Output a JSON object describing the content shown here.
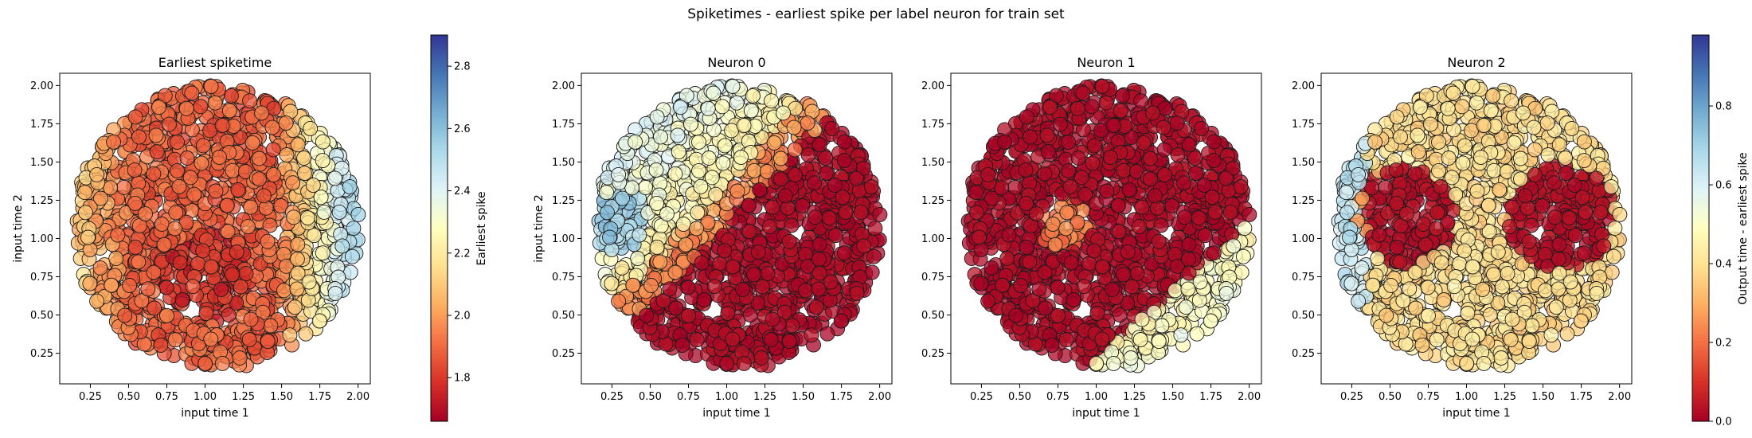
{
  "figure": {
    "suptitle": "Spiketimes - earliest spike per label neuron for train set"
  },
  "colors": {
    "cmap": [
      "#a50026",
      "#d73027",
      "#f46d43",
      "#fdae61",
      "#fee090",
      "#ffffbf",
      "#e0f3f8",
      "#abd9e9",
      "#74add1",
      "#4575b4",
      "#313695"
    ],
    "marker_edge": "#1a1a1a"
  },
  "chart_data": [
    {
      "type": "scatter",
      "title": "Earliest spiketime",
      "xlabel": "input time 1",
      "ylabel": "input time 2",
      "xlim": [
        0.05,
        2.08
      ],
      "ylim": [
        0.05,
        2.08
      ],
      "xticks": [
        "0.25",
        "0.50",
        "0.75",
        "1.00",
        "1.25",
        "1.50",
        "1.75",
        "2.00"
      ],
      "yticks": [
        "0.25",
        "0.50",
        "0.75",
        "1.00",
        "1.25",
        "1.50",
        "1.75",
        "2.00"
      ],
      "colormap": "RdYlBu",
      "point_region": {
        "shape": "disk",
        "center": [
          1.075,
          1.075
        ],
        "radius": 0.93
      },
      "colorbar": {
        "label": "Earliest spike",
        "range": [
          1.66,
          2.9
        ],
        "ticks": [
          "1.8",
          "2.0",
          "2.2",
          "2.4",
          "2.6",
          "2.8"
        ]
      }
    },
    {
      "type": "scatter",
      "title": "Neuron 0",
      "xlabel": "input time 1",
      "ylabel": "input time 2",
      "xlim": [
        0.05,
        2.08
      ],
      "ylim": [
        0.05,
        2.08
      ],
      "xticks": [
        "0.25",
        "0.50",
        "0.75",
        "1.00",
        "1.25",
        "1.50",
        "1.75",
        "2.00"
      ],
      "yticks": [
        "0.25",
        "0.50",
        "0.75",
        "1.00",
        "1.25",
        "1.50",
        "1.75",
        "2.00"
      ],
      "colormap": "RdYlBu",
      "point_region": {
        "shape": "disk",
        "center": [
          1.075,
          1.075
        ],
        "radius": 0.93
      }
    },
    {
      "type": "scatter",
      "title": "Neuron 1",
      "xlabel": "input time 1",
      "ylabel": "",
      "xlim": [
        0.05,
        2.08
      ],
      "ylim": [
        0.05,
        2.08
      ],
      "xticks": [
        "0.25",
        "0.50",
        "0.75",
        "1.00",
        "1.25",
        "1.50",
        "1.75",
        "2.00"
      ],
      "yticks": [
        "0.25",
        "0.50",
        "0.75",
        "1.00",
        "1.25",
        "1.50",
        "1.75",
        "2.00"
      ],
      "colormap": "RdYlBu",
      "point_region": {
        "shape": "disk",
        "center": [
          1.075,
          1.075
        ],
        "radius": 0.93
      }
    },
    {
      "type": "scatter",
      "title": "Neuron 2",
      "xlabel": "input time 1",
      "ylabel": "",
      "xlim": [
        0.05,
        2.08
      ],
      "ylim": [
        0.05,
        2.08
      ],
      "xticks": [
        "0.25",
        "0.50",
        "0.75",
        "1.00",
        "1.25",
        "1.50",
        "1.75",
        "2.00"
      ],
      "yticks": [
        "0.25",
        "0.50",
        "0.75",
        "1.00",
        "1.25",
        "1.50",
        "1.75",
        "2.00"
      ],
      "colormap": "RdYlBu",
      "point_region": {
        "shape": "disk",
        "center": [
          1.075,
          1.075
        ],
        "radius": 0.93
      },
      "colorbar": {
        "label": "Output time - earliest spike",
        "range": [
          0.0,
          0.98
        ],
        "ticks": [
          "0.0",
          "0.2",
          "0.4",
          "0.6",
          "0.8"
        ]
      }
    }
  ]
}
